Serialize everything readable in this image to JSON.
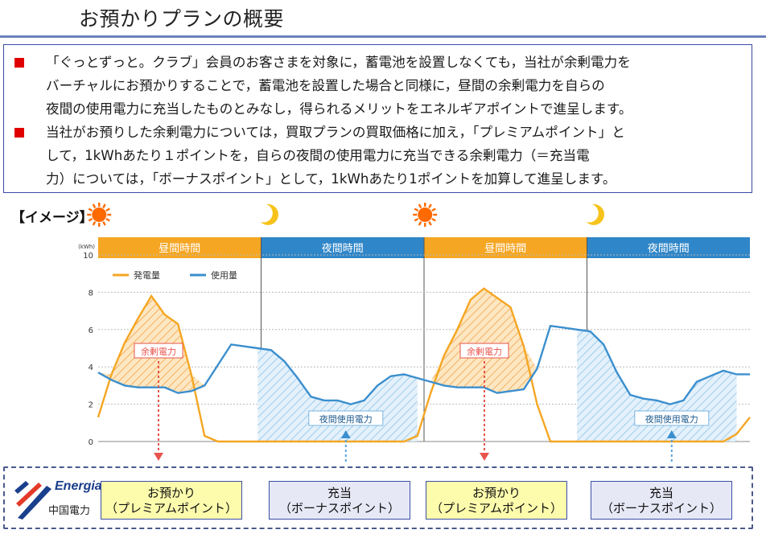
{
  "header": {
    "title": "お預かりプランの概要"
  },
  "bullets": [
    {
      "lines": [
        "「ぐっとずっと。クラブ」会員のお客さまを対象に，蓄電池を設置しなくても，当社が余剰電力を",
        "バーチャルにお預かりすることで，蓄電池を設置した場合と同様に，昼間の余剰電力を自らの",
        "夜間の使用電力に充当したものとみなし，得られるメリットをエネルギアポイントで進呈します。"
      ]
    },
    {
      "lines": [
        "当社がお預りした余剰電力については，買取プランの買取価格に加え，「プレミアムポイント」と",
        "して，1kWhあたり１ポイントを，自らの夜間の使用電力に充当できる余剰電力（＝充当電",
        "力）については，「ボーナスポイント」として，1kWhあたり1ポイントを加算して進呈します。"
      ]
    }
  ],
  "chart_label": "【イメージ】",
  "chart_data": {
    "type": "area",
    "ylabel": "(kWh)",
    "ylim": [
      0,
      10
    ],
    "yticks": [
      "0",
      "2",
      "4",
      "6",
      "8",
      "10"
    ],
    "periods": [
      {
        "label": "昼間時間",
        "kind": "day",
        "icon": "sun-icon"
      },
      {
        "label": "夜間時間",
        "kind": "night",
        "icon": "moon-icon"
      },
      {
        "label": "昼間時間",
        "kind": "day",
        "icon": "sun-icon"
      },
      {
        "label": "夜間時間",
        "kind": "night",
        "icon": "moon-icon"
      }
    ],
    "series": [
      {
        "name": "発電量",
        "color": "#f5a623",
        "values": [
          1.3,
          3.6,
          5.3,
          6.6,
          7.8,
          6.8,
          6.3,
          3.6,
          0.3,
          0,
          0,
          0,
          0,
          0,
          0,
          0,
          0,
          0,
          0,
          0,
          0,
          0,
          0,
          0,
          0.3,
          2.6,
          4.6,
          6.0,
          7.6,
          8.2,
          7.7,
          7.2,
          5.1,
          2.0,
          0,
          0,
          0,
          0,
          0,
          0,
          0,
          0,
          0,
          0,
          0,
          0,
          0,
          0,
          0.4,
          1.3
        ]
      },
      {
        "name": "使用量",
        "color": "#3b8fce",
        "values": [
          3.7,
          3.3,
          3.0,
          2.9,
          2.9,
          2.9,
          2.6,
          2.7,
          3.0,
          4.1,
          5.2,
          5.1,
          5.0,
          4.9,
          4.3,
          3.4,
          2.4,
          2.2,
          2.2,
          2.0,
          2.2,
          3.0,
          3.5,
          3.6,
          3.4,
          3.2,
          3.0,
          2.9,
          2.9,
          2.9,
          2.6,
          2.7,
          2.8,
          3.9,
          6.2,
          6.1,
          6.0,
          5.9,
          5.2,
          3.7,
          2.5,
          2.3,
          2.2,
          2.0,
          2.2,
          3.2,
          3.5,
          3.8,
          3.6,
          3.6
        ]
      }
    ],
    "annotations": [
      {
        "text": "余剰電力",
        "period": 0
      },
      {
        "text": "夜間使用電力",
        "period": 1
      },
      {
        "text": "余剰電力",
        "period": 2
      },
      {
        "text": "夜間使用電力",
        "period": 3
      }
    ],
    "grid": true,
    "legend": "top-left"
  },
  "footer": {
    "logo_text": "Energia",
    "logo_sub": "中国電力",
    "boxes": [
      {
        "line1": "お預かり",
        "line2": "（プレミアムポイント）"
      },
      {
        "line1": "充当",
        "line2": "（ボーナスポイント）"
      },
      {
        "line1": "お預かり",
        "line2": "（プレミアムポイント）"
      },
      {
        "line1": "充当",
        "line2": "（ボーナスポイント）"
      }
    ]
  },
  "colors": {
    "accent_rule": "#6b7fbd",
    "day_header": "#f5a623",
    "night_header": "#2f86c8",
    "generation": "#f5a623",
    "usage": "#3b8fce",
    "surplus_label": "#e8544d"
  }
}
